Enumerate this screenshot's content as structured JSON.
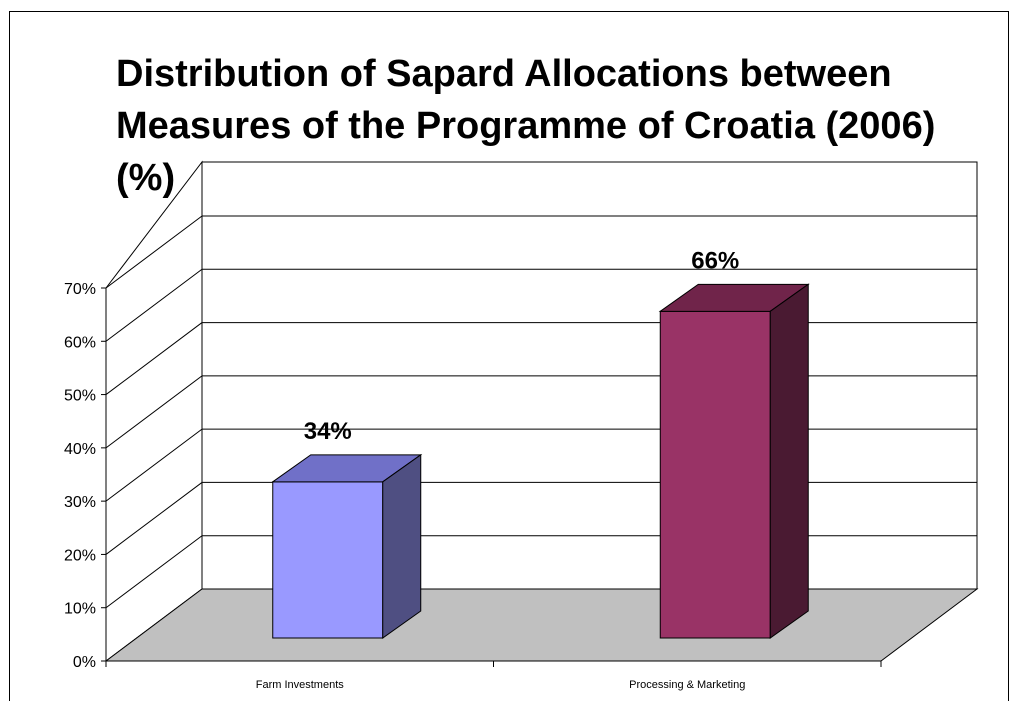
{
  "chart_data": {
    "type": "bar",
    "title": "Distribution of Sapard Allocations between Measures of the Programme of Croatia (2006) (%)",
    "categories": [
      "Farm Investments",
      "Processing & Marketing"
    ],
    "values": [
      34,
      66
    ],
    "data_labels": [
      "34%",
      "66%"
    ],
    "ylim": [
      0,
      70
    ],
    "yticks": [
      "0%",
      "10%",
      "20%",
      "30%",
      "40%",
      "50%",
      "60%",
      "70%"
    ],
    "grid": true,
    "legend": "none",
    "three_d": true,
    "colors": {
      "bar_front": [
        "#9999ff",
        "#993366"
      ],
      "bar_top": [
        "#7070c8",
        "#70244a"
      ],
      "bar_side": [
        "#4f4f82",
        "#4a1a32"
      ],
      "floor": "#c0c0c0"
    }
  }
}
